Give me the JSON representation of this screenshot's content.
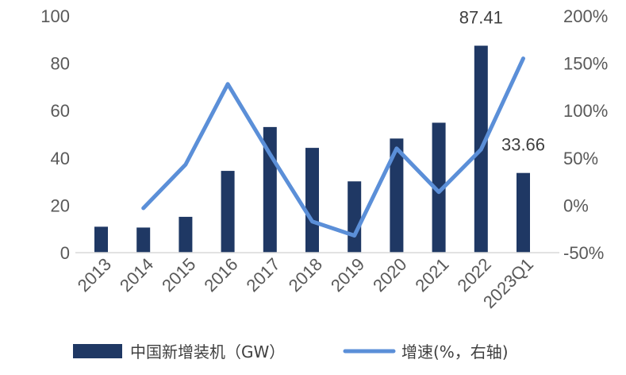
{
  "chart_data": {
    "type": "bar",
    "categories": [
      "2013",
      "2014",
      "2015",
      "2016",
      "2017",
      "2018",
      "2019",
      "2020",
      "2021",
      "2022",
      "2023Q1"
    ],
    "series": [
      {
        "name": "中国新增装机（GW）",
        "type": "bar",
        "axis": "left",
        "color": "#1f3864",
        "values": [
          10.95,
          10.6,
          15.13,
          34.54,
          53.06,
          44.26,
          30.11,
          48.2,
          54.88,
          87.41,
          33.66
        ]
      },
      {
        "name": "增速(%，右轴)",
        "type": "line",
        "axis": "right",
        "color": "#5b8fd8",
        "values": [
          null,
          -3,
          43,
          128,
          54,
          -17,
          -32,
          60,
          14,
          59,
          155
        ]
      }
    ],
    "left_axis": {
      "min": 0,
      "max": 100,
      "ticks": [
        "0",
        "20",
        "40",
        "60",
        "80",
        "100"
      ]
    },
    "right_axis": {
      "min": -50,
      "max": 200,
      "ticks": [
        "-50%",
        "0%",
        "50%",
        "100%",
        "150%",
        "200%"
      ]
    },
    "data_labels": [
      {
        "category": "2022",
        "text": "87.41"
      },
      {
        "category": "2023Q1",
        "text": "33.66"
      }
    ],
    "legend": {
      "position": "bottom",
      "bar_label": "中国新增装机（GW）",
      "line_label": "增速(%，右轴)"
    }
  }
}
